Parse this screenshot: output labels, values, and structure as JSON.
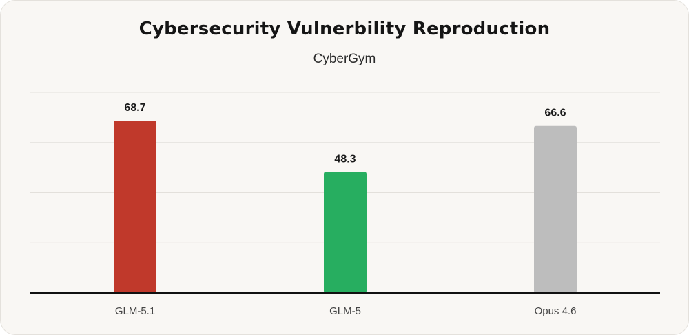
{
  "chart_data": {
    "type": "bar",
    "title": "Cybersecurity Vulnerbility Reproduction",
    "subtitle": "CyberGym",
    "xlabel": "",
    "ylabel": "",
    "categories": [
      "GLM-5.1",
      "GLM-5",
      "Opus 4.6"
    ],
    "values": [
      68.7,
      48.3,
      66.6
    ],
    "value_labels": [
      "68.7",
      "48.3",
      "66.6"
    ],
    "colors": [
      "#c0392b",
      "#27ae60",
      "#bdbdbd"
    ],
    "ylim": [
      0,
      80
    ],
    "grid": true,
    "legend": "none"
  }
}
